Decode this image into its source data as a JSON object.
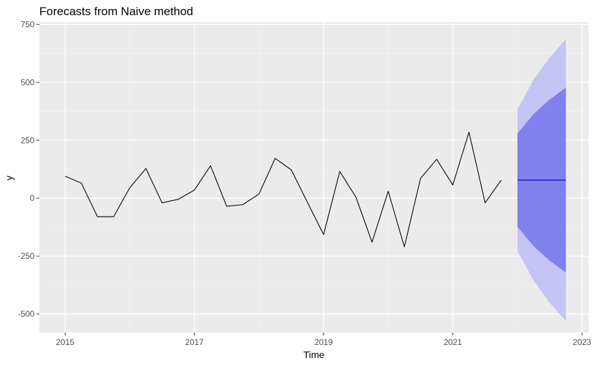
{
  "chart_data": {
    "type": "line",
    "title": "Forecasts from Naive method",
    "xlabel": "Time",
    "ylabel": "y",
    "xlim": [
      2014.6,
      2023.1
    ],
    "ylim": [
      -580,
      760
    ],
    "grid": true,
    "x_ticks": [
      2015,
      2017,
      2019,
      2021,
      2023
    ],
    "y_ticks": [
      -500,
      -250,
      0,
      250,
      500,
      750
    ],
    "x_tick_labels": [
      "2015",
      "2017",
      "2019",
      "2021",
      "2023"
    ],
    "y_tick_labels": [
      "-500",
      "-250",
      "0",
      "250",
      "500",
      "750"
    ],
    "series": [
      {
        "kind": "observed",
        "color": "#000000",
        "x": [
          2015.0,
          2015.25,
          2015.5,
          2015.75,
          2016.0,
          2016.25,
          2016.5,
          2016.75,
          2017.0,
          2017.25,
          2017.5,
          2017.75,
          2018.0,
          2018.25,
          2018.5,
          2018.75,
          2019.0,
          2019.25,
          2019.5,
          2019.75,
          2020.0,
          2020.25,
          2020.5,
          2020.75,
          2021.0,
          2021.25,
          2021.5,
          2021.75
        ],
        "y": [
          95,
          65,
          -80,
          -80,
          45,
          128,
          -20,
          -5,
          35,
          140,
          -35,
          -28,
          18,
          172,
          122,
          -18,
          -157,
          115,
          5,
          -190,
          30,
          -210,
          85,
          168,
          57,
          285,
          -20,
          78
        ]
      },
      {
        "kind": "point_forecast",
        "color": "#0000aa",
        "x": [
          2022.0,
          2022.75
        ],
        "y": [
          78,
          78
        ]
      }
    ],
    "intervals": [
      {
        "level": "95",
        "color": "#c4c4f4",
        "x": [
          2022.0,
          2022.25,
          2022.5,
          2022.75
        ],
        "lower": [
          -228,
          -355,
          -452,
          -530
        ],
        "upper": [
          384,
          511,
          608,
          686
        ]
      },
      {
        "level": "80",
        "color": "#8080ee",
        "x": [
          2022.0,
          2022.25,
          2022.5,
          2022.75
        ],
        "lower": [
          -123,
          -207,
          -270,
          -321
        ],
        "upper": [
          279,
          363,
          426,
          477
        ]
      }
    ],
    "colors": {
      "panel_bg": "#ebebeb",
      "grid_major": "#ffffff",
      "grid_minor": "#f5f5f5"
    }
  }
}
